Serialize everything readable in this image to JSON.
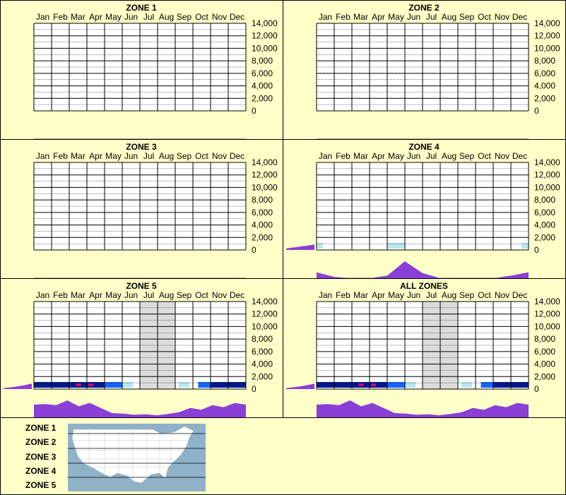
{
  "months": [
    "Jan",
    "Feb",
    "Mar",
    "Apr",
    "May",
    "Jun",
    "Jul",
    "Aug",
    "Sep",
    "Oct",
    "Nov",
    "Dec"
  ],
  "y_ticks": [
    "14,000",
    "12,000",
    "10,000",
    "8,000",
    "6,000",
    "4,000",
    "2,000",
    "0"
  ],
  "colors": {
    "background": "#ffffc8",
    "profile_fill": "#8a3fd6",
    "heat_dark": "#001a8c",
    "heat_mid": "#1565ff",
    "heat_light": "#b6e7ee",
    "heat_hot": "#d7007a",
    "shade": "#dcdcdc",
    "map_water": "#8fb2c9",
    "map_land": "#ffffff"
  },
  "chart_data": [
    {
      "type": "heatmap",
      "title": "ZONE 1",
      "categories": [
        "Jan",
        "Feb",
        "Mar",
        "Apr",
        "May",
        "Jun",
        "Jul",
        "Aug",
        "Sep",
        "Oct",
        "Nov",
        "Dec"
      ],
      "ylim": [
        0,
        14000
      ],
      "shaded_months": [],
      "side_profile": null,
      "monthly_profile": null,
      "heat_cells": []
    },
    {
      "type": "heatmap",
      "title": "ZONE 2",
      "categories": [
        "Jan",
        "Feb",
        "Mar",
        "Apr",
        "May",
        "Jun",
        "Jul",
        "Aug",
        "Sep",
        "Oct",
        "Nov",
        "Dec"
      ],
      "ylim": [
        0,
        14000
      ],
      "shaded_months": [],
      "side_profile": null,
      "monthly_profile": null,
      "heat_cells": []
    },
    {
      "type": "heatmap",
      "title": "ZONE 3",
      "categories": [
        "Jan",
        "Feb",
        "Mar",
        "Apr",
        "May",
        "Jun",
        "Jul",
        "Aug",
        "Sep",
        "Oct",
        "Nov",
        "Dec"
      ],
      "ylim": [
        0,
        14000
      ],
      "shaded_months": [],
      "side_profile": null,
      "monthly_profile": null,
      "heat_cells": []
    },
    {
      "type": "heatmap",
      "title": "ZONE 4",
      "categories": [
        "Jan",
        "Feb",
        "Mar",
        "Apr",
        "May",
        "Jun",
        "Jul",
        "Aug",
        "Sep",
        "Oct",
        "Nov",
        "Dec"
      ],
      "ylim": [
        0,
        14000
      ],
      "shaded_months": [],
      "side_profile": [
        0.15,
        0.25,
        0.35,
        0.45,
        0.55
      ],
      "monthly_profile": [
        0.35,
        0.08,
        0.0,
        0.0,
        0.15,
        1.0,
        0.3,
        0.0,
        0.0,
        0.0,
        0.0,
        0.15,
        0.35
      ],
      "heat_cells": [
        {
          "month": 0,
          "start": 0.0,
          "end": 0.35,
          "color": "#b6e7ee"
        },
        {
          "month": 4,
          "start": 0.0,
          "end": 1.0,
          "color": "#b6e7ee"
        },
        {
          "month": 11,
          "start": 0.6,
          "end": 1.0,
          "color": "#b6e7ee"
        }
      ]
    },
    {
      "type": "heatmap",
      "title": "ZONE 5",
      "categories": [
        "Jan",
        "Feb",
        "Mar",
        "Apr",
        "May",
        "Jun",
        "Jul",
        "Aug",
        "Sep",
        "Oct",
        "Nov",
        "Dec"
      ],
      "ylim": [
        0,
        14000
      ],
      "shaded_months": [
        6,
        7
      ],
      "side_profile": [
        0.1,
        0.18,
        0.28,
        0.4,
        0.55
      ],
      "monthly_profile": [
        0.75,
        0.78,
        0.72,
        1.0,
        0.65,
        0.85,
        0.55,
        0.25,
        0.22,
        0.15,
        0.18,
        0.12,
        0.2,
        0.3,
        0.55,
        0.45,
        0.72,
        0.6,
        0.85,
        0.75
      ],
      "heat_cells": [
        {
          "month": 0,
          "start": 0.0,
          "end": 1.0,
          "color": "#001a8c"
        },
        {
          "month": 1,
          "start": 0.0,
          "end": 1.0,
          "color": "#001a8c"
        },
        {
          "month": 2,
          "start": 0.0,
          "end": 1.0,
          "color": "#001a8c"
        },
        {
          "month": 3,
          "start": 0.0,
          "end": 1.0,
          "color": "#001a8c"
        },
        {
          "month": 4,
          "start": 0.0,
          "end": 1.0,
          "color": "#1565ff"
        },
        {
          "month": 5,
          "start": 0.0,
          "end": 0.6,
          "color": "#b6e7ee"
        },
        {
          "month": 8,
          "start": 0.2,
          "end": 0.8,
          "color": "#b6e7ee"
        },
        {
          "month": 9,
          "start": 0.3,
          "end": 1.0,
          "color": "#1565ff"
        },
        {
          "month": 10,
          "start": 0.0,
          "end": 1.0,
          "color": "#001a8c"
        },
        {
          "month": 11,
          "start": 0.0,
          "end": 1.0,
          "color": "#001a8c"
        }
      ],
      "hot_spots": [
        {
          "month": 2,
          "pos": 0.5
        },
        {
          "month": 3,
          "pos": 0.2
        }
      ]
    },
    {
      "type": "heatmap",
      "title": "ALL ZONES",
      "categories": [
        "Jan",
        "Feb",
        "Mar",
        "Apr",
        "May",
        "Jun",
        "Jul",
        "Aug",
        "Sep",
        "Oct",
        "Nov",
        "Dec"
      ],
      "ylim": [
        0,
        14000
      ],
      "shaded_months": [
        6,
        7
      ],
      "side_profile": [
        0.1,
        0.18,
        0.28,
        0.4,
        0.55
      ],
      "monthly_profile": [
        0.75,
        0.78,
        0.72,
        1.0,
        0.65,
        0.85,
        0.55,
        0.25,
        0.22,
        0.15,
        0.18,
        0.12,
        0.2,
        0.3,
        0.55,
        0.45,
        0.72,
        0.6,
        0.85,
        0.75
      ],
      "heat_cells": [
        {
          "month": 0,
          "start": 0.0,
          "end": 1.0,
          "color": "#001a8c"
        },
        {
          "month": 1,
          "start": 0.0,
          "end": 1.0,
          "color": "#001a8c"
        },
        {
          "month": 2,
          "start": 0.0,
          "end": 1.0,
          "color": "#001a8c"
        },
        {
          "month": 3,
          "start": 0.0,
          "end": 1.0,
          "color": "#001a8c"
        },
        {
          "month": 4,
          "start": 0.0,
          "end": 1.0,
          "color": "#1565ff"
        },
        {
          "month": 5,
          "start": 0.0,
          "end": 0.6,
          "color": "#b6e7ee"
        },
        {
          "month": 8,
          "start": 0.2,
          "end": 0.8,
          "color": "#b6e7ee"
        },
        {
          "month": 9,
          "start": 0.3,
          "end": 1.0,
          "color": "#1565ff"
        },
        {
          "month": 10,
          "start": 0.0,
          "end": 1.0,
          "color": "#001a8c"
        },
        {
          "month": 11,
          "start": 0.0,
          "end": 1.0,
          "color": "#001a8c"
        }
      ],
      "hot_spots": [
        {
          "month": 2,
          "pos": 0.5
        },
        {
          "month": 3,
          "pos": 0.2
        }
      ]
    }
  ],
  "legend": {
    "zones": [
      "ZONE 1",
      "ZONE 2",
      "ZONE 3",
      "ZONE 4",
      "ZONE 5"
    ],
    "map_icon": "us-map-icon"
  }
}
